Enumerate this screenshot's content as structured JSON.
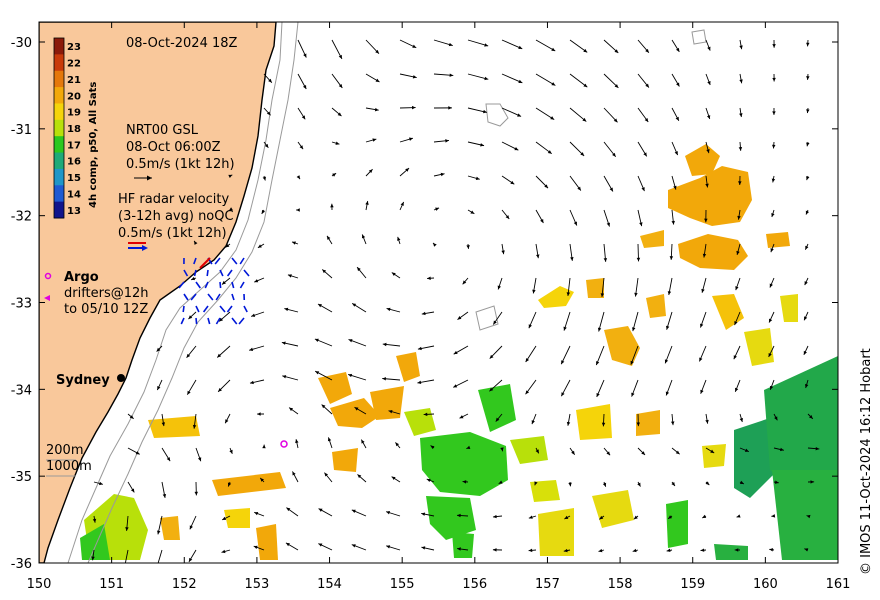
{
  "map": {
    "date_label": "08-Oct-2024 18Z",
    "x_ticks": [
      "150",
      "151",
      "152",
      "153",
      "154",
      "155",
      "156",
      "157",
      "158",
      "159",
      "160",
      "161"
    ],
    "y_ticks": [
      "-30",
      "-31",
      "-32",
      "-33",
      "-34",
      "-35",
      "-36"
    ],
    "colorbar": {
      "title": "4h comp, p50, All Sats",
      "labels": [
        "23",
        "22",
        "21",
        "20",
        "19",
        "18",
        "17",
        "16",
        "15",
        "14",
        "13"
      ],
      "colors": [
        "#8b1a0a",
        "#c83a0a",
        "#e5780a",
        "#f2a80a",
        "#f5d40a",
        "#b8e00a",
        "#2cc81e",
        "#1eaa78",
        "#1e96c8",
        "#1e5ad2",
        "#10148c"
      ]
    },
    "gsl": {
      "line1": "NRT00 GSL",
      "line2": "08-Oct 06:00Z",
      "line3": "0.5m/s (1kt 12h)"
    },
    "hf_radar": {
      "line1": "HF radar velocity",
      "line2": "(3-12h avg) noQC",
      "line3": "0.5m/s (1kt 12h)"
    },
    "argo": {
      "title": "Argo",
      "line1": "drifters@12h",
      "line2": "to 05/10 12Z"
    },
    "city": "Sydney",
    "isobath_200": "200m",
    "isobath_1000": "1000m",
    "credit": "© IMOS 11-Oct-2024 16:12 Hobart",
    "colors": {
      "land": "#f9c89b",
      "coast": "#000000",
      "isobath": "#9a9a9a",
      "argo": "#e000e0",
      "hf_arrow": "#0018d8",
      "hf_ref_red": "#e00000"
    }
  }
}
